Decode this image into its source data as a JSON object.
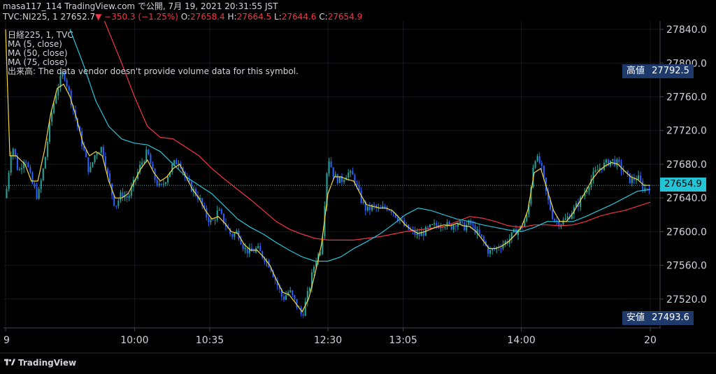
{
  "header": {
    "line1": "masa117_114 TradingView.com で公開, 7月 19, 2021 20:31:55 JST",
    "symbol": "TVC:NI225, 1",
    "last": "27652.7",
    "arrow": "▼",
    "change": "−350.3 (−1.25%)",
    "o_label": "O:",
    "o_value": "27658.4",
    "h_label": "H:",
    "h_value": "27664.5",
    "l_label": "L:",
    "l_value": "27644.6",
    "c_label": "C:",
    "c_value": "27654.9"
  },
  "legend": [
    "日経225, 1, TVC",
    "MA (5, close)",
    "MA (50, close)",
    "MA (75, close)",
    "出来高: The data vendor doesn't provide volume data for this symbol."
  ],
  "tags": {
    "high_label": "高値",
    "high_value": "27792.5",
    "current_value": "27654.9",
    "low_label": "安値",
    "low_value": "27493.6"
  },
  "brand": {
    "name": "TradingView"
  },
  "colors": {
    "up": "#26a69a",
    "down": "#2962ff",
    "ma5": "#f5d73d",
    "ma50": "#26c6da",
    "ma75": "#f23645",
    "tag_bg": "#1e3a6b",
    "current_bg": "#22c4d6"
  },
  "chart_data": {
    "type": "candlestick",
    "symbol": "TVC:NI225",
    "interval": "1",
    "ylim": [
      27485,
      27850
    ],
    "y_ticks": [
      27520,
      27560,
      27600,
      27640,
      27680,
      27720,
      27760,
      27800,
      27840
    ],
    "y_tick_labels": [
      "27520.0",
      "27560.0",
      "27600.0",
      "27640.0",
      "27680.0",
      "27720.0",
      "27760.0",
      "27800.0",
      "27840.0"
    ],
    "x_ticks": [
      {
        "minute": 0,
        "label": "9"
      },
      {
        "minute": 60,
        "label": "10:00"
      },
      {
        "minute": 95,
        "label": "10:35"
      },
      {
        "minute": 150,
        "label": "12:30"
      },
      {
        "minute": 185,
        "label": "13:05"
      },
      {
        "minute": 240,
        "label": "14:00"
      },
      {
        "minute": 300,
        "label": "20"
      }
    ],
    "xlim_minutes": [
      0,
      300
    ],
    "close_path": [
      [
        0,
        27640
      ],
      [
        3,
        27705
      ],
      [
        6,
        27670
      ],
      [
        9,
        27690
      ],
      [
        12,
        27660
      ],
      [
        15,
        27640
      ],
      [
        18,
        27680
      ],
      [
        21,
        27735
      ],
      [
        24,
        27770
      ],
      [
        27,
        27790
      ],
      [
        30,
        27760
      ],
      [
        33,
        27730
      ],
      [
        36,
        27700
      ],
      [
        39,
        27670
      ],
      [
        42,
        27695
      ],
      [
        45,
        27700
      ],
      [
        48,
        27660
      ],
      [
        51,
        27630
      ],
      [
        54,
        27645
      ],
      [
        57,
        27640
      ],
      [
        60,
        27660
      ],
      [
        63,
        27680
      ],
      [
        66,
        27695
      ],
      [
        69,
        27665
      ],
      [
        72,
        27650
      ],
      [
        75,
        27665
      ],
      [
        78,
        27680
      ],
      [
        81,
        27685
      ],
      [
        84,
        27660
      ],
      [
        87,
        27650
      ],
      [
        90,
        27640
      ],
      [
        93,
        27620
      ],
      [
        96,
        27610
      ],
      [
        99,
        27625
      ],
      [
        102,
        27610
      ],
      [
        105,
        27595
      ],
      [
        108,
        27600
      ],
      [
        111,
        27580
      ],
      [
        114,
        27575
      ],
      [
        117,
        27580
      ],
      [
        120,
        27570
      ],
      [
        123,
        27560
      ],
      [
        126,
        27540
      ],
      [
        129,
        27520
      ],
      [
        132,
        27530
      ],
      [
        135,
        27515
      ],
      [
        138,
        27500
      ],
      [
        141,
        27530
      ],
      [
        144,
        27565
      ],
      [
        147,
        27580
      ],
      [
        150,
        27690
      ],
      [
        153,
        27665
      ],
      [
        156,
        27660
      ],
      [
        159,
        27670
      ],
      [
        162,
        27665
      ],
      [
        165,
        27640
      ],
      [
        168,
        27625
      ],
      [
        171,
        27630
      ],
      [
        174,
        27625
      ],
      [
        177,
        27630
      ],
      [
        180,
        27625
      ],
      [
        183,
        27615
      ],
      [
        186,
        27605
      ],
      [
        189,
        27600
      ],
      [
        192,
        27595
      ],
      [
        195,
        27600
      ],
      [
        198,
        27605
      ],
      [
        201,
        27608
      ],
      [
        204,
        27610
      ],
      [
        207,
        27605
      ],
      [
        210,
        27612
      ],
      [
        213,
        27605
      ],
      [
        216,
        27610
      ],
      [
        219,
        27600
      ],
      [
        222,
        27590
      ],
      [
        225,
        27575
      ],
      [
        228,
        27580
      ],
      [
        231,
        27585
      ],
      [
        234,
        27590
      ],
      [
        237,
        27600
      ],
      [
        240,
        27605
      ],
      [
        243,
        27620
      ],
      [
        246,
        27690
      ],
      [
        249,
        27680
      ],
      [
        252,
        27640
      ],
      [
        255,
        27615
      ],
      [
        258,
        27610
      ],
      [
        261,
        27615
      ],
      [
        264,
        27625
      ],
      [
        267,
        27635
      ],
      [
        270,
        27650
      ],
      [
        273,
        27665
      ],
      [
        276,
        27675
      ],
      [
        279,
        27680
      ],
      [
        282,
        27685
      ],
      [
        285,
        27680
      ],
      [
        288,
        27670
      ],
      [
        291,
        27660
      ],
      [
        294,
        27665
      ],
      [
        297,
        27650
      ],
      [
        300,
        27655
      ]
    ],
    "ma5_path": [
      [
        0,
        27840
      ],
      [
        2,
        27690
      ],
      [
        5,
        27690
      ],
      [
        9,
        27680
      ],
      [
        12,
        27660
      ],
      [
        15,
        27660
      ],
      [
        18,
        27695
      ],
      [
        21,
        27740
      ],
      [
        24,
        27770
      ],
      [
        27,
        27775
      ],
      [
        30,
        27760
      ],
      [
        33,
        27735
      ],
      [
        36,
        27705
      ],
      [
        39,
        27690
      ],
      [
        42,
        27695
      ],
      [
        45,
        27690
      ],
      [
        48,
        27660
      ],
      [
        51,
        27640
      ],
      [
        54,
        27640
      ],
      [
        57,
        27645
      ],
      [
        60,
        27660
      ],
      [
        63,
        27675
      ],
      [
        66,
        27685
      ],
      [
        69,
        27670
      ],
      [
        72,
        27660
      ],
      [
        75,
        27665
      ],
      [
        78,
        27675
      ],
      [
        81,
        27680
      ],
      [
        84,
        27665
      ],
      [
        87,
        27650
      ],
      [
        90,
        27640
      ],
      [
        93,
        27625
      ],
      [
        96,
        27615
      ],
      [
        99,
        27618
      ],
      [
        102,
        27610
      ],
      [
        105,
        27600
      ],
      [
        108,
        27598
      ],
      [
        111,
        27585
      ],
      [
        114,
        27578
      ],
      [
        117,
        27578
      ],
      [
        120,
        27570
      ],
      [
        123,
        27560
      ],
      [
        126,
        27543
      ],
      [
        129,
        27528
      ],
      [
        132,
        27525
      ],
      [
        135,
        27515
      ],
      [
        138,
        27505
      ],
      [
        141,
        27520
      ],
      [
        144,
        27550
      ],
      [
        147,
        27585
      ],
      [
        150,
        27645
      ],
      [
        153,
        27665
      ],
      [
        156,
        27665
      ],
      [
        159,
        27662
      ],
      [
        162,
        27660
      ],
      [
        165,
        27645
      ],
      [
        168,
        27632
      ],
      [
        171,
        27630
      ],
      [
        174,
        27628
      ],
      [
        177,
        27628
      ],
      [
        180,
        27625
      ],
      [
        183,
        27617
      ],
      [
        186,
        27608
      ],
      [
        189,
        27602
      ],
      [
        192,
        27598
      ],
      [
        195,
        27600
      ],
      [
        198,
        27603
      ],
      [
        201,
        27606
      ],
      [
        204,
        27608
      ],
      [
        207,
        27607
      ],
      [
        210,
        27610
      ],
      [
        213,
        27607
      ],
      [
        216,
        27606
      ],
      [
        219,
        27600
      ],
      [
        222,
        27590
      ],
      [
        225,
        27580
      ],
      [
        228,
        27580
      ],
      [
        231,
        27583
      ],
      [
        234,
        27588
      ],
      [
        237,
        27596
      ],
      [
        240,
        27605
      ],
      [
        243,
        27625
      ],
      [
        246,
        27670
      ],
      [
        249,
        27675
      ],
      [
        252,
        27650
      ],
      [
        255,
        27625
      ],
      [
        258,
        27612
      ],
      [
        261,
        27612
      ],
      [
        264,
        27622
      ],
      [
        267,
        27635
      ],
      [
        270,
        27648
      ],
      [
        273,
        27662
      ],
      [
        276,
        27672
      ],
      [
        279,
        27678
      ],
      [
        282,
        27682
      ],
      [
        285,
        27680
      ],
      [
        288,
        27672
      ],
      [
        291,
        27665
      ],
      [
        294,
        27662
      ],
      [
        297,
        27655
      ],
      [
        300,
        27655
      ]
    ],
    "ma50_path": [
      [
        30,
        27840
      ],
      [
        36,
        27800
      ],
      [
        42,
        27755
      ],
      [
        48,
        27725
      ],
      [
        54,
        27710
      ],
      [
        60,
        27705
      ],
      [
        66,
        27703
      ],
      [
        72,
        27695
      ],
      [
        78,
        27680
      ],
      [
        84,
        27665
      ],
      [
        90,
        27655
      ],
      [
        96,
        27645
      ],
      [
        102,
        27630
      ],
      [
        108,
        27615
      ],
      [
        114,
        27605
      ],
      [
        120,
        27597
      ],
      [
        126,
        27587
      ],
      [
        132,
        27578
      ],
      [
        138,
        27570
      ],
      [
        144,
        27565
      ],
      [
        150,
        27565
      ],
      [
        156,
        27570
      ],
      [
        162,
        27580
      ],
      [
        168,
        27588
      ],
      [
        174,
        27597
      ],
      [
        180,
        27608
      ],
      [
        186,
        27620
      ],
      [
        192,
        27628
      ],
      [
        198,
        27625
      ],
      [
        204,
        27620
      ],
      [
        210,
        27615
      ],
      [
        216,
        27612
      ],
      [
        222,
        27608
      ],
      [
        228,
        27605
      ],
      [
        234,
        27602
      ],
      [
        240,
        27600
      ],
      [
        246,
        27605
      ],
      [
        252,
        27612
      ],
      [
        258,
        27612
      ],
      [
        264,
        27612
      ],
      [
        270,
        27618
      ],
      [
        276,
        27625
      ],
      [
        282,
        27632
      ],
      [
        288,
        27640
      ],
      [
        294,
        27648
      ],
      [
        300,
        27650
      ]
    ],
    "ma75_path": [
      [
        46,
        27850
      ],
      [
        54,
        27800
      ],
      [
        60,
        27760
      ],
      [
        66,
        27725
      ],
      [
        72,
        27712
      ],
      [
        78,
        27710
      ],
      [
        84,
        27700
      ],
      [
        90,
        27690
      ],
      [
        96,
        27675
      ],
      [
        102,
        27662
      ],
      [
        108,
        27650
      ],
      [
        114,
        27638
      ],
      [
        120,
        27625
      ],
      [
        126,
        27612
      ],
      [
        132,
        27603
      ],
      [
        138,
        27597
      ],
      [
        144,
        27592
      ],
      [
        150,
        27590
      ],
      [
        156,
        27590
      ],
      [
        162,
        27590
      ],
      [
        168,
        27592
      ],
      [
        174,
        27594
      ],
      [
        180,
        27597
      ],
      [
        186,
        27600
      ],
      [
        192,
        27602
      ],
      [
        198,
        27604
      ],
      [
        204,
        27606
      ],
      [
        210,
        27612
      ],
      [
        216,
        27618
      ],
      [
        222,
        27616
      ],
      [
        228,
        27612
      ],
      [
        234,
        27607
      ],
      [
        240,
        27605
      ],
      [
        246,
        27608
      ],
      [
        252,
        27608
      ],
      [
        258,
        27607
      ],
      [
        264,
        27608
      ],
      [
        270,
        27612
      ],
      [
        276,
        27618
      ],
      [
        282,
        27622
      ],
      [
        288,
        27625
      ],
      [
        294,
        27630
      ],
      [
        300,
        27635
      ]
    ],
    "high_marker": 27792.5,
    "low_marker": 27493.6,
    "current_price": 27654.9,
    "grid": true
  }
}
